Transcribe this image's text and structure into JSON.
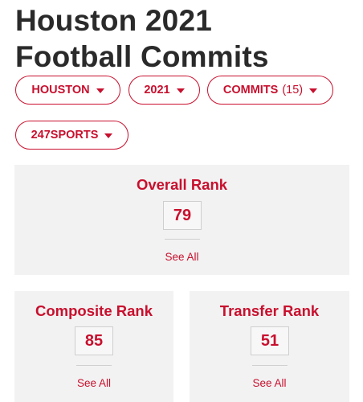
{
  "header": {
    "title_line1": "Houston 2021",
    "title_line2": "Football Commits"
  },
  "filters": {
    "team": "HOUSTON",
    "year": "2021",
    "type": "COMMITS",
    "type_count": "(15)",
    "source": "247SPORTS"
  },
  "overall_rank": {
    "label": "Overall Rank",
    "value": "79",
    "link": "See All"
  },
  "composite_rank": {
    "label": "Composite Rank",
    "value": "85",
    "link": "See All"
  },
  "transfer_rank": {
    "label": "Transfer Rank",
    "value": "51",
    "link": "See All"
  },
  "colors": {
    "accent": "#c8102e",
    "card_bg": "#f2f2f2",
    "title_text": "#2a2a2a"
  },
  "icons": {
    "dropdown": "caret-down-icon"
  }
}
